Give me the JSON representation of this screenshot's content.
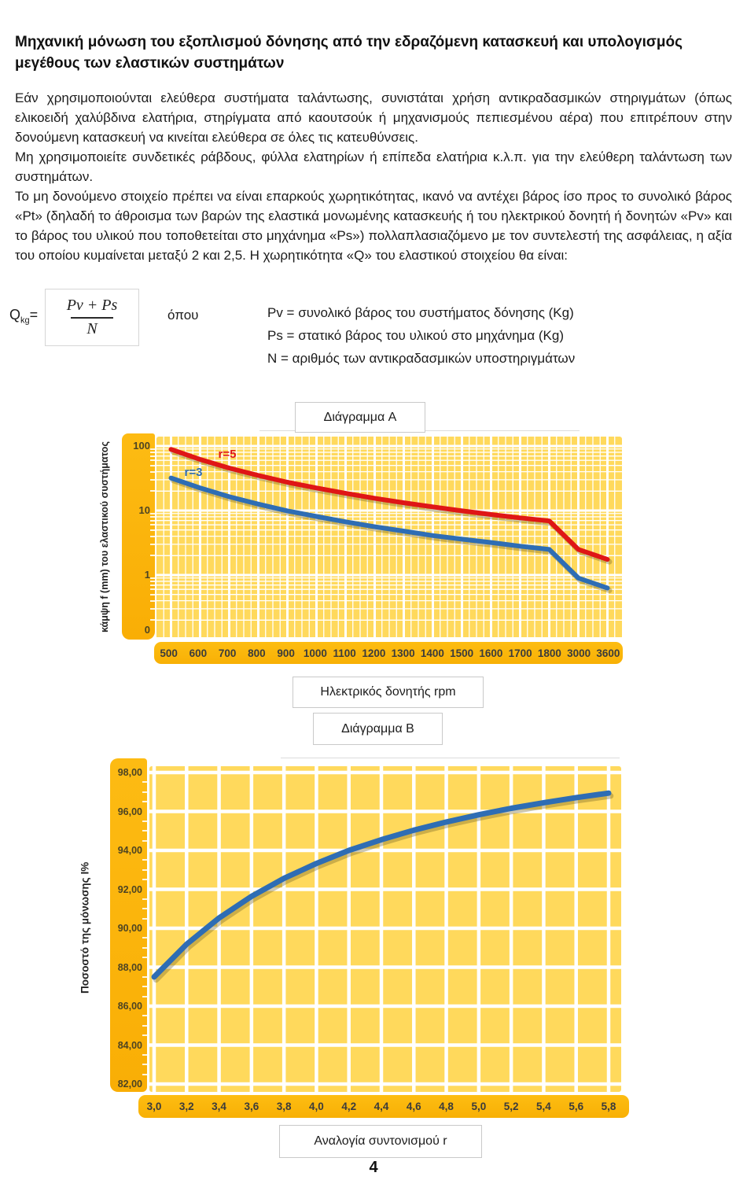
{
  "document": {
    "title": "Μηχανική μόνωση του εξοπλισμού δόνησης από την εδραζόμενη κατασκευή και υπολογισμός μεγέθους  των ελαστικών συστημάτων",
    "paragraphs": [
      "Εάν χρησιμοποιούνται ελεύθερα συστήματα ταλάντωσης, συνιστάται χρήση αντικραδασμικών στηριγμάτων (όπως ελικοειδή χαλύβδινα ελατήρια, στηρίγματα από καουτσούκ ή μηχανισμούς πεπιεσμένου αέρα) που επιτρέπουν στην δονούμενη κατασκευή να κινείται ελεύθερα σε όλες τις κατευθύνσεις.",
      "Μη χρησιμοποιείτε συνδετικές ράβδους, φύλλα ελατηρίων ή επίπεδα ελατήρια κ.λ.π. για την ελεύθερη ταλάντωση των συστημάτων.",
      "Το μη δονούμενο στοιχείο πρέπει να είναι επαρκούς χωρητικότητας, ικανό να αντέχει βάρος ίσο προς το συνολικό βάρος «Pt» (δηλαδή το άθροισμα των βαρών της ελαστικά μονωμένης κατασκευής ή του ηλεκτρικού δονητή ή δονητών «Pv» και το βάρος του υλικού που τοποθετείται στο μηχάνημα «Ps») πολλαπλασιαζόμενο με τον συντελεστή της ασφάλειας, η αξία του οποίου κυμαίνεται μεταξύ 2 και 2,5. Η χωρητικότητα «Q» του ελαστικού στοιχείου θα είναι:"
    ],
    "page_number": "4"
  },
  "formula": {
    "lhs_base": "Q",
    "lhs_sub": "kg",
    "equals": "=",
    "numerator": "Pv + Ps",
    "denominator": "N",
    "where": "όπου",
    "definitions": [
      "Pv = συνολικό βάρος του συστήματος δόνησης (Kg)",
      "Ps = στατικό βάρος του υλικού στο μηχάνημα (Kg)",
      "N = αριθμός των αντικραδασμικών υποστηριγμάτων"
    ]
  },
  "chart_a": {
    "title": "Διάγραμμα A",
    "ylabel": "κάμψη f (mm) του ελαστικού συστήματος",
    "xlabel_box": "Ηλεκτρικός δονητής rpm",
    "y_ticks": [
      "100",
      "10",
      "1",
      "0"
    ],
    "x_ticks": [
      "500",
      "600",
      "700",
      "800",
      "900",
      "1000",
      "1100",
      "1200",
      "1300",
      "1400",
      "1500",
      "1600",
      "1700",
      "1800",
      "3000",
      "3600"
    ],
    "series_labels": {
      "r5": "r=5",
      "r3": "r=3"
    }
  },
  "chart_b": {
    "title": "Διάγραμμα B",
    "ylabel": "Ποσοστό της μόνωσης Ι%",
    "xlabel_box": "Αναλογία συντονισμού r",
    "y_ticks": [
      "98,00",
      "96,00",
      "94,00",
      "92,00",
      "90,00",
      "88,00",
      "86,00",
      "84,00",
      "82,00"
    ],
    "x_ticks": [
      "3,0",
      "3,2",
      "3,4",
      "3,6",
      "3,8",
      "4,0",
      "4,2",
      "4,4",
      "4,6",
      "4,8",
      "5,0",
      "5,2",
      "5,4",
      "5,6",
      "5,8"
    ]
  },
  "colors": {
    "plot_bg": "#ffd95c",
    "band": "#fbb315",
    "grid": "#ffffff",
    "red": "#df1616",
    "blue": "#2e6db4",
    "shadow": "rgba(110,95,35,0.35)"
  },
  "chart_data": [
    {
      "type": "line",
      "title": "Διάγραμμα A",
      "xlabel": "Ηλεκτρικός δονητής rpm",
      "ylabel": "κάμψη f (mm) του ελαστικού συστήματος",
      "y_scale": "log",
      "ylim": [
        0.1,
        100
      ],
      "grid": true,
      "legend_position": "inline-on-curves",
      "categories": [
        500,
        600,
        700,
        800,
        900,
        1000,
        1100,
        1200,
        1300,
        1400,
        1500,
        1600,
        1700,
        1800,
        3000,
        3600
      ],
      "series": [
        {
          "name": "r=5",
          "color": "#df1616",
          "values": [
            89,
            62,
            45.5,
            35,
            27.5,
            22.4,
            18.5,
            15.5,
            13.2,
            11.4,
            9.9,
            8.7,
            7.7,
            6.9,
            2.5,
            1.75
          ]
        },
        {
          "name": "r=3",
          "color": "#2e6db4",
          "values": [
            32,
            22.4,
            16.4,
            12.6,
            9.9,
            8.1,
            6.7,
            5.6,
            4.8,
            4.1,
            3.6,
            3.2,
            2.8,
            2.5,
            0.9,
            0.63
          ]
        }
      ]
    },
    {
      "type": "line",
      "title": "Διάγραμμα B",
      "xlabel": "Αναλογία συντονισμού r",
      "ylabel": "Ποσοστό της μόνωσης Ι%",
      "ylim": [
        82,
        98
      ],
      "grid": true,
      "x": [
        3.0,
        3.2,
        3.4,
        3.6,
        3.8,
        4.0,
        4.2,
        4.4,
        4.6,
        4.8,
        5.0,
        5.2,
        5.4,
        5.6,
        5.8
      ],
      "series": [
        {
          "name": "Ποσοστό μόνωσης Ι%",
          "color": "#2e6db4",
          "values": [
            87.5,
            89.18,
            90.53,
            91.64,
            92.56,
            93.33,
            94.0,
            94.55,
            95.04,
            95.46,
            95.83,
            96.16,
            96.45,
            96.71,
            96.94
          ]
        }
      ]
    }
  ]
}
